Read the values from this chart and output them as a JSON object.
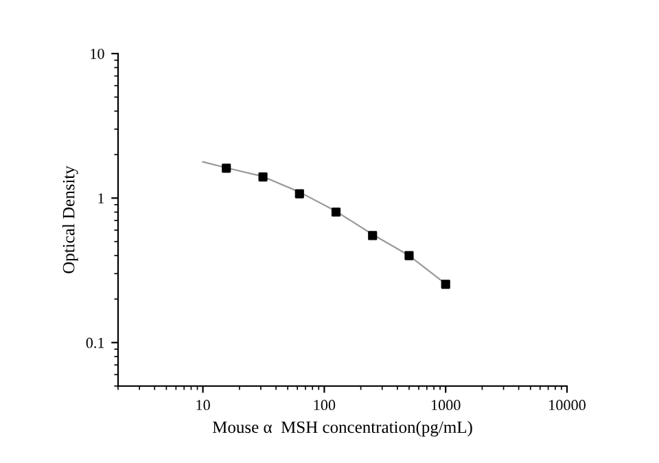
{
  "chart_data": {
    "type": "scatter",
    "xlabel": "Mouse α  MSH concentration(pg/mL)",
    "ylabel": "Optical Density",
    "log": "xy",
    "xlim": [
      2,
      10000
    ],
    "xticks": [
      10,
      100,
      1000,
      10000
    ],
    "ylim": [
      0.05,
      10
    ],
    "yticks": [
      0.1,
      1,
      10
    ],
    "grid": false,
    "legend": false,
    "series": [
      {
        "type": "line",
        "color": "#999999",
        "marker": "none",
        "line_style": "solid",
        "x": [
          10,
          15.6,
          31.25,
          62.5,
          125,
          250,
          500,
          1000
        ],
        "values": [
          1.78,
          1.62,
          1.41,
          1.1,
          0.81,
          0.56,
          0.4,
          0.255
        ]
      },
      {
        "color": "#000000",
        "marker": "square",
        "x": [
          15.6,
          31.25,
          62.5,
          125,
          250,
          500,
          1000
        ],
        "values": [
          1.61,
          1.4,
          1.07,
          0.8,
          0.55,
          0.4,
          0.253
        ]
      }
    ]
  }
}
